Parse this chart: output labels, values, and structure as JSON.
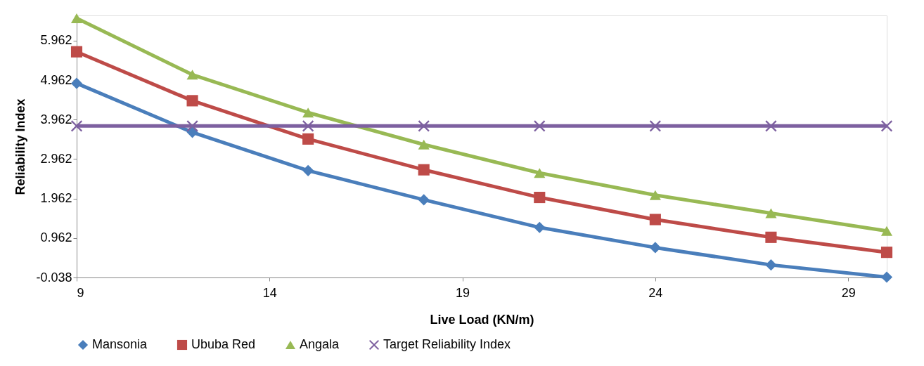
{
  "chart_data": {
    "type": "line",
    "xlabel": "Live Load (KN/m)",
    "ylabel": "Reliability Index",
    "x": [
      9,
      12,
      15,
      18,
      21,
      24,
      27,
      30
    ],
    "series": [
      {
        "name": "Mansonia",
        "color": "#4a7ebb",
        "marker": "diamond",
        "values": [
          4.88,
          3.64,
          2.67,
          1.93,
          1.23,
          0.72,
          0.28,
          -0.03
        ]
      },
      {
        "name": "Ububa Red",
        "color": "#be4b48",
        "marker": "square",
        "values": [
          5.68,
          4.44,
          3.47,
          2.69,
          1.99,
          1.43,
          0.98,
          0.6
        ]
      },
      {
        "name": "Angala",
        "color": "#98b954",
        "marker": "triangle",
        "values": [
          6.53,
          5.1,
          4.14,
          3.33,
          2.61,
          2.05,
          1.59,
          1.14
        ]
      },
      {
        "name": "Target Reliability Index",
        "color": "#7d60a0",
        "marker": "cross",
        "values": [
          3.8,
          3.8,
          3.8,
          3.8,
          3.8,
          3.8,
          3.8,
          3.8
        ]
      }
    ],
    "xlim": [
      9,
      30
    ],
    "xticks": [
      9,
      14,
      19,
      24,
      29
    ],
    "ylim": [
      -0.038,
      6.6
    ],
    "yticks": [
      -0.038,
      0.962,
      1.962,
      2.962,
      3.962,
      4.962,
      5.962
    ],
    "grid": false,
    "legend": "bottom",
    "line_style": "solid"
  }
}
